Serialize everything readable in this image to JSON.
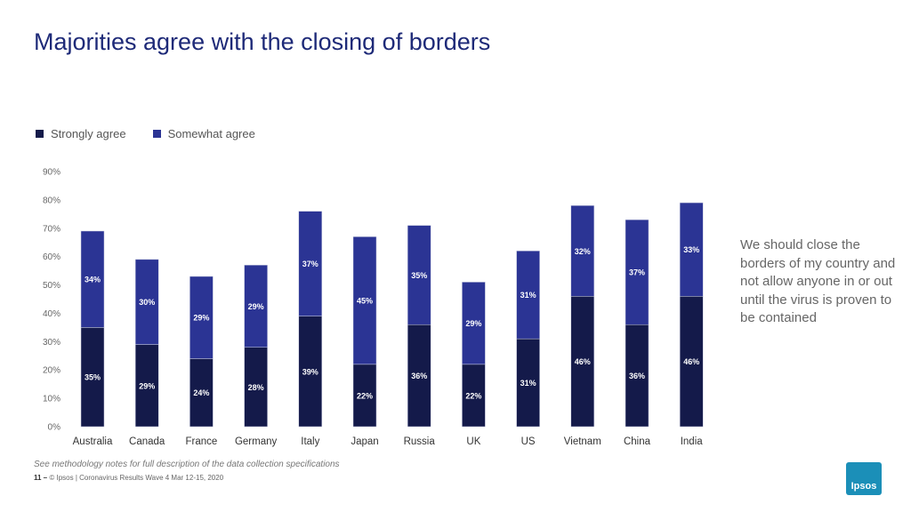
{
  "title": "Majorities agree with the closing of borders",
  "colors": {
    "strongly": "#141a4a",
    "somewhat": "#2b3494",
    "axis_text": "#666666"
  },
  "legend": [
    {
      "label": "Strongly agree",
      "color": "#141a4a"
    },
    {
      "label": "Somewhat agree",
      "color": "#2b3494"
    }
  ],
  "note": "We should close the borders of my country and not allow anyone in or out until the virus is proven to be contained",
  "methodology": "See methodology notes for full description of the data collection specifications",
  "footer": {
    "page": "11 –",
    "text": "© Ipsos | Coronavirus Results Wave 4 Mar 12-15, 2020"
  },
  "logo_text": "Ipsos",
  "chart_data": {
    "type": "bar",
    "stacked": true,
    "categories": [
      "Australia",
      "Canada",
      "France",
      "Germany",
      "Italy",
      "Japan",
      "Russia",
      "UK",
      "US",
      "Vietnam",
      "China",
      "India"
    ],
    "series": [
      {
        "name": "Strongly agree",
        "values": [
          35,
          29,
          24,
          28,
          39,
          22,
          36,
          22,
          31,
          46,
          36,
          46
        ],
        "color": "#141a4a"
      },
      {
        "name": "Somewhat agree",
        "values": [
          34,
          30,
          29,
          29,
          37,
          45,
          35,
          29,
          31,
          32,
          37,
          33
        ],
        "color": "#2b3494"
      }
    ],
    "ylim": [
      0,
      90
    ],
    "yticks": [
      "0%",
      "10%",
      "20%",
      "30%",
      "40%",
      "50%",
      "60%",
      "70%",
      "80%",
      "90%"
    ],
    "legend_position": "top-left",
    "grid": false
  }
}
